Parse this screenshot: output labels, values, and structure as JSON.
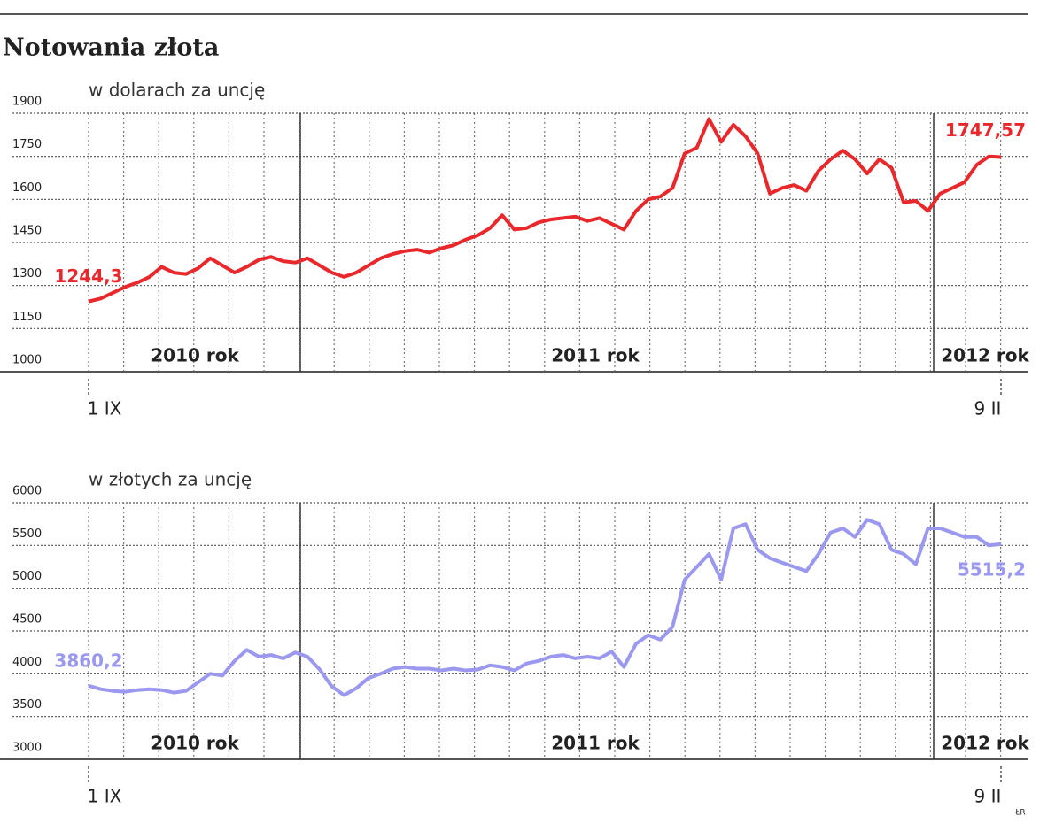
{
  "title": "Notowania złota",
  "credit": "ŁR",
  "chart_data": [
    {
      "type": "line",
      "subtitle": "w dolarach za uncję",
      "color": "#e8282b",
      "grid": true,
      "ylim": [
        1000,
        1900
      ],
      "yticks": [
        1000,
        1150,
        1300,
        1450,
        1600,
        1750,
        1900
      ],
      "annotations": [
        "2010 rok",
        "2011 rok",
        "2012 rok"
      ],
      "categories": [
        "1 IX",
        null,
        null,
        null,
        null,
        null,
        null,
        null,
        null,
        null,
        null,
        null,
        null,
        null,
        null,
        null,
        null,
        null,
        null,
        null,
        null,
        null,
        null,
        null,
        null,
        null,
        null,
        null,
        null,
        null,
        null,
        null,
        null,
        null,
        null,
        null,
        null,
        null,
        null,
        null,
        null,
        null,
        null,
        null,
        null,
        null,
        null,
        null,
        null,
        null,
        null,
        null,
        null,
        null,
        null,
        null,
        null,
        null,
        null,
        null,
        null,
        null,
        null,
        null,
        null,
        null,
        null,
        null,
        null,
        null,
        null,
        null,
        null,
        null,
        null,
        "9 II"
      ],
      "values": [
        1244.3,
        1255,
        1275,
        1295,
        1310,
        1330,
        1365,
        1345,
        1340,
        1360,
        1395,
        1370,
        1345,
        1365,
        1390,
        1400,
        1385,
        1380,
        1395,
        1370,
        1345,
        1330,
        1345,
        1370,
        1395,
        1410,
        1420,
        1425,
        1415,
        1430,
        1440,
        1460,
        1475,
        1500,
        1545,
        1495,
        1500,
        1520,
        1530,
        1535,
        1540,
        1525,
        1535,
        1515,
        1495,
        1560,
        1600,
        1610,
        1640,
        1760,
        1780,
        1880,
        1800,
        1860,
        1820,
        1760,
        1620,
        1640,
        1650,
        1630,
        1700,
        1740,
        1770,
        1740,
        1690,
        1740,
        1710,
        1590,
        1595,
        1560,
        1620,
        1640,
        1660,
        1720,
        1750,
        1747.57
      ],
      "value_labels": [
        "1244,3",
        null,
        null,
        null,
        null,
        null,
        null,
        null,
        null,
        null,
        null,
        null,
        null,
        null,
        null,
        null,
        null,
        null,
        null,
        null,
        null,
        null,
        null,
        null,
        null,
        null,
        null,
        null,
        null,
        null,
        null,
        null,
        null,
        null,
        null,
        null,
        null,
        null,
        null,
        null,
        null,
        null,
        null,
        null,
        null,
        null,
        null,
        null,
        null,
        null,
        null,
        null,
        null,
        null,
        null,
        null,
        null,
        null,
        null,
        null,
        null,
        null,
        null,
        null,
        null,
        null,
        null,
        null,
        null,
        null,
        null,
        null,
        null,
        null,
        null,
        "1747,57"
      ]
    },
    {
      "type": "line",
      "subtitle": "w złotych za uncję",
      "color": "#9b98f0",
      "grid": true,
      "ylim": [
        3000,
        6000
      ],
      "yticks": [
        3000,
        3500,
        4000,
        4500,
        5000,
        5500,
        6000
      ],
      "annotations": [
        "2010 rok",
        "2011 rok",
        "2012 rok"
      ],
      "categories": [
        "1 IX",
        null,
        null,
        null,
        null,
        null,
        null,
        null,
        null,
        null,
        null,
        null,
        null,
        null,
        null,
        null,
        null,
        null,
        null,
        null,
        null,
        null,
        null,
        null,
        null,
        null,
        null,
        null,
        null,
        null,
        null,
        null,
        null,
        null,
        null,
        null,
        null,
        null,
        null,
        null,
        null,
        null,
        null,
        null,
        null,
        null,
        null,
        null,
        null,
        null,
        null,
        null,
        null,
        null,
        null,
        null,
        null,
        null,
        null,
        null,
        null,
        null,
        null,
        null,
        null,
        null,
        null,
        null,
        null,
        null,
        null,
        null,
        null,
        null,
        null,
        "9 II"
      ],
      "values": [
        3860.2,
        3820,
        3800,
        3790,
        3810,
        3820,
        3810,
        3780,
        3800,
        3900,
        4000,
        3980,
        4150,
        4280,
        4200,
        4220,
        4180,
        4250,
        4200,
        4050,
        3850,
        3750,
        3830,
        3950,
        4000,
        4060,
        4080,
        4060,
        4060,
        4040,
        4060,
        4040,
        4050,
        4100,
        4080,
        4040,
        4120,
        4150,
        4200,
        4220,
        4180,
        4200,
        4180,
        4260,
        4080,
        4350,
        4450,
        4400,
        4550,
        5100,
        5250,
        5400,
        5100,
        5700,
        5750,
        5450,
        5350,
        5300,
        5250,
        5200,
        5400,
        5650,
        5700,
        5600,
        5800,
        5750,
        5450,
        5400,
        5280,
        5700,
        5700,
        5650,
        5600,
        5600,
        5500,
        5515.2
      ],
      "value_labels": [
        "3860,2",
        null,
        null,
        null,
        null,
        null,
        null,
        null,
        null,
        null,
        null,
        null,
        null,
        null,
        null,
        null,
        null,
        null,
        null,
        null,
        null,
        null,
        null,
        null,
        null,
        null,
        null,
        null,
        null,
        null,
        null,
        null,
        null,
        null,
        null,
        null,
        null,
        null,
        null,
        null,
        null,
        null,
        null,
        null,
        null,
        null,
        null,
        null,
        null,
        null,
        null,
        null,
        null,
        null,
        null,
        null,
        null,
        null,
        null,
        null,
        null,
        null,
        null,
        null,
        null,
        null,
        null,
        null,
        null,
        null,
        null,
        null,
        null,
        null,
        null,
        "5515,2"
      ]
    }
  ]
}
